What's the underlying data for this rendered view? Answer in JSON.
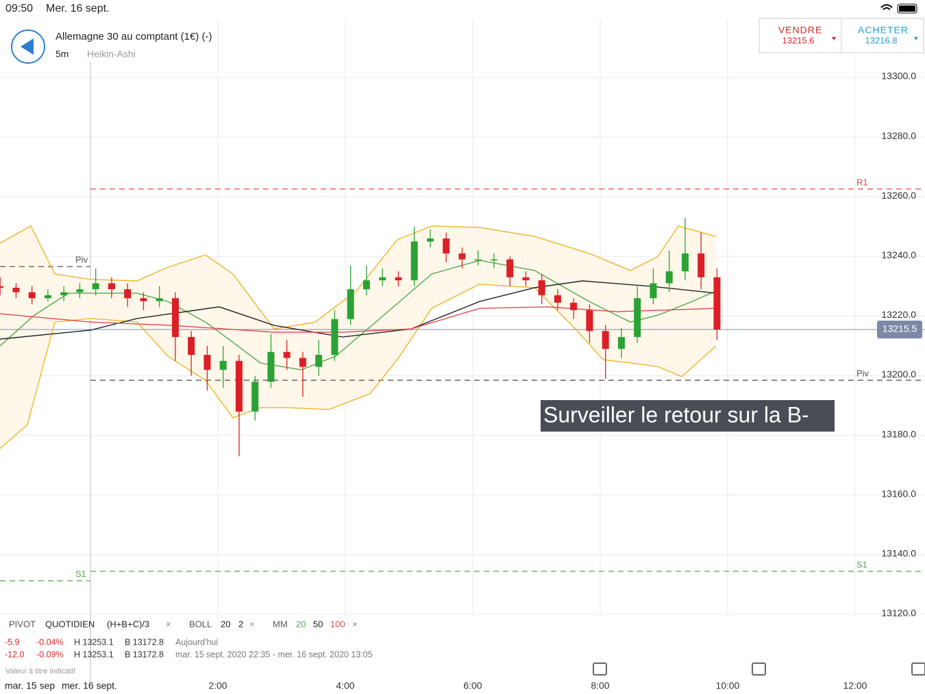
{
  "ui": {
    "status_time": "09:50",
    "status_date": "Mer. 16 sept.",
    "instrument": "Allemagne 30 au comptant (1€) (-)",
    "timeframe": "5m",
    "chart_style": "Heikin-Ashi",
    "sell_label": "VENDRE",
    "sell_price": "13215.6",
    "buy_label": "ACHETER",
    "buy_price": "13216.8",
    "legend": {
      "pivot": "PIVOT",
      "pivot_type": "QUOTIDIEN",
      "pivot_formula": "(H+B+C)/3",
      "boll": "BOLL",
      "boll_period": "20",
      "boll_dev": "2",
      "mm": "MM",
      "mm1": "20",
      "mm2": "50",
      "mm3": "100",
      "close": "×"
    },
    "stats": [
      [
        "-5.9",
        "-0.04%",
        "H 13253.1",
        "B 13172.8",
        "Aujourd'hui"
      ],
      [
        "-12.0",
        "-0.09%",
        "H 13253.1",
        "B 13172.8",
        "mar. 15 sept. 2020 22:35 - mer. 16 sept. 2020 13:05"
      ]
    ],
    "disclaimer": "Valeur à titre indicatif",
    "date_prev": "mar. 15 sep",
    "date_cur": "mer. 16 sept."
  },
  "chart_data": {
    "type": "candlestick",
    "xlim": [
      -1.419,
      12.323
    ],
    "ylim": [
      13120,
      13319.5
    ],
    "xticks": [
      {
        "value": 2,
        "label": "2:00"
      },
      {
        "value": 4,
        "label": "4:00"
      },
      {
        "value": 6,
        "label": "6:00"
      },
      {
        "value": 8,
        "label": "8:00"
      },
      {
        "value": 10,
        "label": "10:00"
      },
      {
        "value": 12,
        "label": "12:00"
      }
    ],
    "yticks": [
      {
        "value": 13120,
        "label": "13120.0"
      },
      {
        "value": 13140,
        "label": "13140.0"
      },
      {
        "value": 13160,
        "label": "13160.0"
      },
      {
        "value": 13180,
        "label": "13180.0"
      },
      {
        "value": 13200,
        "label": "13200.0"
      },
      {
        "value": 13220,
        "label": "13220.0"
      },
      {
        "value": 13240,
        "label": "13240.0"
      },
      {
        "value": 13260,
        "label": "13260.0"
      },
      {
        "value": 13280,
        "label": "13280.0"
      },
      {
        "value": 13300,
        "label": "13300.0"
      }
    ],
    "grid": true,
    "day_break": 0,
    "up_color": "#2aa234",
    "down_color": "#dc1f26",
    "x": [
      -1.417,
      -1.167,
      -0.917,
      -0.667,
      -0.417,
      -0.167,
      0.083,
      0.333,
      0.583,
      0.833,
      1.083,
      1.333,
      1.583,
      1.833,
      2.083,
      2.333,
      2.583,
      2.833,
      3.083,
      3.333,
      3.583,
      3.833,
      4.083,
      4.333,
      4.583,
      4.833,
      5.083,
      5.333,
      5.583,
      5.833,
      6.083,
      6.333,
      6.583,
      6.833,
      7.083,
      7.333,
      7.583,
      7.833,
      8.083,
      8.333,
      8.583,
      8.833,
      9.083,
      9.333,
      9.583,
      9.833
    ],
    "open": [
      13230,
      13229.5,
      13228,
      13226,
      13227,
      13228,
      13229,
      13231,
      13229,
      13226,
      13225,
      13226,
      13213,
      13207,
      13202,
      13205,
      13188,
      13198,
      13208,
      13206,
      13203,
      13207,
      13219,
      13229,
      13232,
      13233,
      13232,
      13245,
      13246,
      13241,
      13239,
      13239,
      13239,
      13233,
      13232,
      13227,
      13224.5,
      13222,
      13215,
      13209,
      13213,
      13226,
      13231,
      13235,
      13241,
      13233
    ],
    "high": [
      13233,
      13231,
      13230,
      13229,
      13230,
      13231,
      13236,
      13233,
      13231,
      13228,
      13230,
      13228,
      13215,
      13210,
      13210,
      13207,
      13200,
      13214,
      13212,
      13208,
      13212,
      13222,
      13237,
      13237,
      13236,
      13235,
      13250,
      13249,
      13248,
      13243,
      13242,
      13241,
      13240,
      13235,
      13234,
      13229,
      13226,
      13224,
      13217,
      13216,
      13230,
      13236,
      13242,
      13253,
      13248,
      13236
    ],
    "low": [
      13227,
      13226,
      13224,
      13225,
      13225,
      13226,
      13227,
      13226,
      13223,
      13222,
      13223,
      13205,
      13200,
      13195,
      13196,
      13173,
      13185,
      13196,
      13202,
      13193,
      13200,
      13205,
      13217,
      13227,
      13230,
      13230,
      13230,
      13243,
      13238,
      13236,
      13237,
      13236,
      13230,
      13230,
      13224,
      13222,
      13219,
      13211,
      13199,
      13206,
      13211,
      13224,
      13228,
      13232,
      13229,
      13212
    ],
    "close": [
      13229.5,
      13228,
      13226,
      13227,
      13228,
      13229,
      13231,
      13229,
      13226,
      13225,
      13226,
      13213,
      13207,
      13202,
      13205,
      13188,
      13198,
      13208,
      13206,
      13203,
      13207,
      13219,
      13229,
      13232,
      13233,
      13232,
      13245,
      13246,
      13241,
      13239,
      13239,
      13239,
      13233,
      13232,
      13227,
      13224.5,
      13222,
      13215,
      13209,
      13213,
      13226,
      13231,
      13235,
      13241,
      13233,
      13215.5
    ],
    "series": [
      {
        "color": "#f0b429",
        "x": [
          -1.419,
          -0.935,
          -0.559,
          0,
          0.731,
          1.215,
          1.806,
          2.237,
          2.882,
          3.527,
          4.172,
          4.817,
          5.355,
          6.108,
          6.968,
          7.828,
          8.473,
          8.903,
          9.226,
          9.817
        ],
        "values": [
          13244.4,
          13250.2,
          13234.1,
          13232.3,
          13231.8,
          13236.4,
          13240.5,
          13234.1,
          13215.7,
          13218,
          13228.4,
          13245.6,
          13250.2,
          13249.7,
          13246.7,
          13241,
          13235.3,
          13239.9,
          13250.2,
          13246.7
        ]
      },
      {
        "color": "#f0b429",
        "x": [
          -1.419,
          -0.989,
          -0.559,
          0,
          0.731,
          1.215,
          1.806,
          2.237,
          2.667,
          3.097,
          3.742,
          4.387,
          4.817,
          5.355,
          6.108,
          6.968,
          7.613,
          8.043,
          8.473,
          8.903,
          9.28,
          9.817
        ],
        "values": [
          13175.6,
          13183.6,
          13218,
          13219.2,
          13218,
          13206.6,
          13198.5,
          13185.9,
          13189.3,
          13189.3,
          13188.7,
          13194,
          13205.4,
          13222.6,
          13230.7,
          13229.5,
          13215.7,
          13205.4,
          13204.3,
          13203.1,
          13199.7,
          13210
        ]
      },
      {
        "color": "#4caa4c",
        "x": [
          -1.419,
          -0.881,
          -0.344,
          0.731,
          1.215,
          1.806,
          2.237,
          2.667,
          3.312,
          3.85,
          4.602,
          5.355,
          6.108,
          6.968,
          7.828,
          8.473,
          8.903,
          9.441,
          9.817
        ],
        "values": [
          13210,
          13220.3,
          13227.7,
          13227.7,
          13224.9,
          13218,
          13211.2,
          13204.3,
          13202,
          13206.6,
          13220.3,
          13234.1,
          13238.7,
          13235.3,
          13224.9,
          13218,
          13220.3,
          13224.9,
          13228.4
        ]
      },
      {
        "color": "#222222",
        "x": [
          -1.419,
          0,
          0.731,
          2.022,
          2.882,
          3.957,
          5.032,
          6.108,
          6.968,
          7.72,
          8.796,
          9.817
        ],
        "values": [
          13212.3,
          13215.3,
          13219.2,
          13223.1,
          13216.9,
          13213,
          13215.7,
          13224.9,
          13229.5,
          13231.8,
          13230,
          13227.7
        ]
      },
      {
        "color": "#e0474a",
        "x": [
          -1.419,
          0,
          1.269,
          2.882,
          3.957,
          5.032,
          6.108,
          7.183,
          8.258,
          9.817
        ],
        "values": [
          13220.8,
          13218,
          13216.9,
          13214.6,
          13214.6,
          13215.7,
          13222.6,
          13223.1,
          13221.5,
          13222.6
        ]
      }
    ],
    "band_fill": "#fff7ea",
    "levels": [
      {
        "label": "R1",
        "value": 13262.6,
        "color": "#e0474a",
        "from": 0
      },
      {
        "label": "Piv",
        "value": 13198.5,
        "color": "#555555",
        "from": 0
      },
      {
        "label": "S1",
        "value": 13134.5,
        "color": "#4caa4c",
        "from": 0
      },
      {
        "label": "Piv",
        "value": 13236.6,
        "color": "#555555",
        "from": -1.419,
        "to": 0
      },
      {
        "label": "S1",
        "value": 13131.3,
        "color": "#4caa4c",
        "from": -1.419,
        "to": 0
      }
    ],
    "last_price": 13215.5,
    "last_color": "#7c88a6",
    "annotation": "Surveiller le retour sur la B-"
  }
}
